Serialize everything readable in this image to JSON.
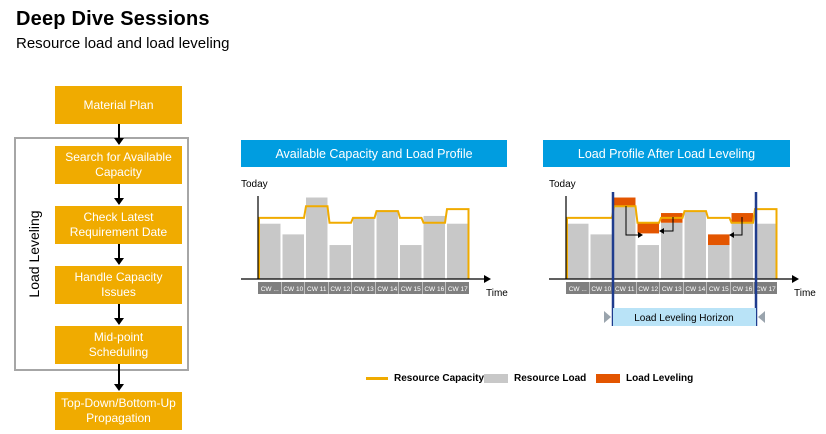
{
  "header": {
    "title": "Deep Dive Sessions",
    "subtitle": "Resource load and load leveling"
  },
  "flow": {
    "material_plan": "Material Plan",
    "search_capacity": "Search for Available Capacity",
    "check_requirement": "Check Latest Requirement Date",
    "handle_capacity": "Handle Capacity Issues",
    "midpoint": "Mid-point Scheduling",
    "topdown": "Top-Down/Bottom-Up Propagation",
    "load_leveling_label": "Load Leveling"
  },
  "panels": {
    "left_title": "Available Capacity and Load Profile",
    "right_title": "Load Profile After Load Leveling",
    "today": "Today",
    "time": "Time",
    "horizon": "Load Leveling Horizon"
  },
  "legend": {
    "capacity": "Resource Capacity",
    "load": "Resource Load",
    "leveling": "Load Leveling"
  },
  "colors": {
    "orange": "#f0ab00",
    "blue": "#009de0",
    "grey": "#c8c8c8",
    "red": "#e35500",
    "axisgrey": "#7f7f7f"
  },
  "chart_data": [
    {
      "type": "bar",
      "title": "Available Capacity and Load Profile",
      "categories": [
        "CW ...",
        "CW 10",
        "CW 11",
        "CW 12",
        "CW 13",
        "CW 14",
        "CW 15",
        "CW 16",
        "CW 17"
      ],
      "series": [
        {
          "name": "Resource Capacity",
          "values": [
            63,
            63,
            75,
            58,
            63,
            70,
            63,
            58,
            72
          ]
        },
        {
          "name": "Resource Load",
          "values": [
            57,
            46,
            84,
            35,
            64,
            71,
            35,
            65,
            57
          ]
        }
      ],
      "ylim": [
        0,
        100
      ]
    },
    {
      "type": "bar",
      "title": "Load Profile After Load Leveling",
      "categories": [
        "CW ...",
        "CW 10",
        "CW 11",
        "CW 12",
        "CW 13",
        "CW 14",
        "CW 15",
        "CW 16",
        "CW 17"
      ],
      "series": [
        {
          "name": "Resource Capacity",
          "values": [
            63,
            63,
            75,
            58,
            63,
            70,
            63,
            58,
            72
          ]
        },
        {
          "name": "Resource Load",
          "values": [
            57,
            46,
            75,
            35,
            58,
            70,
            35,
            58,
            57
          ]
        },
        {
          "name": "Load Leveling",
          "base": [
            0,
            0,
            75,
            47,
            58,
            0,
            35,
            58,
            0
          ],
          "values": [
            0,
            0,
            9,
            11,
            10,
            0,
            11,
            10,
            0
          ]
        }
      ],
      "ylim": [
        0,
        100
      ]
    }
  ]
}
